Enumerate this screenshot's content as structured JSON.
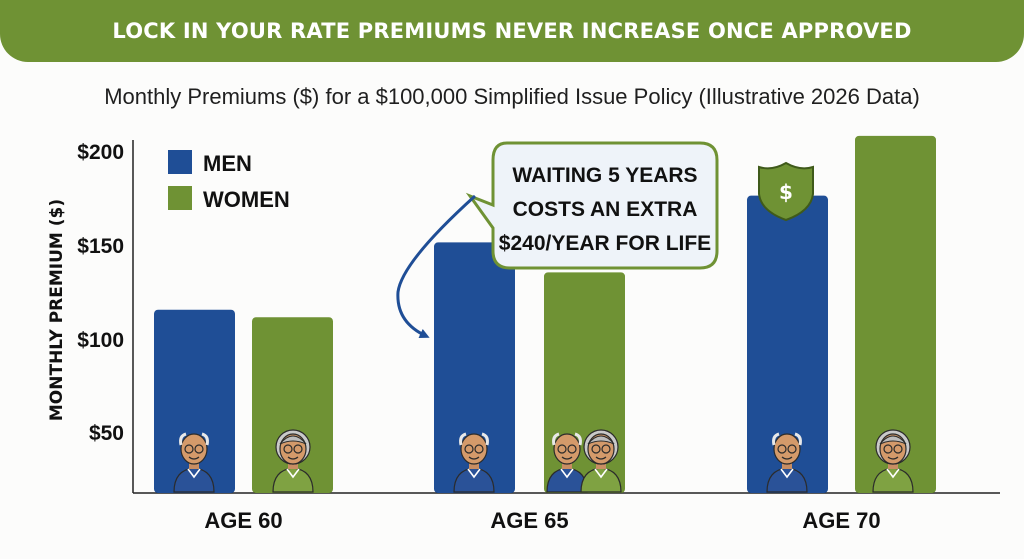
{
  "banner": {
    "text": "LOCK IN YOUR RATE PREMIUMS NEVER INCREASE ONCE APPROVED"
  },
  "colors": {
    "banner": "#6f9234",
    "men": "#1f4e96",
    "women": "#6f9234",
    "callout_border": "#6f9234",
    "callout_arrow": "#1f4e96"
  },
  "callout": {
    "lines": [
      "WAITING 5 YEARS",
      "COSTS AN EXTRA",
      "$240/YEAR FOR LIFE"
    ]
  },
  "icons": [
    "shield-dollar-icon",
    "older-man-avatar",
    "older-woman-avatar",
    "older-couple-avatar"
  ],
  "chart_data": {
    "type": "bar",
    "title": "Monthly Premiums ($) for a $100,000 Simplified Issue Policy (Illustrative 2026 Data)",
    "xlabel": "",
    "ylabel": "MONTHLY PREMIUM ($)",
    "categories": [
      "AGE 60",
      "AGE 65",
      "AGE 70"
    ],
    "series": [
      {
        "name": "MEN",
        "values": [
          98,
          134,
          159
        ]
      },
      {
        "name": "WOMEN",
        "values": [
          94,
          118,
          191
        ]
      }
    ],
    "yticks": [
      "$50",
      "$100",
      "$150",
      "$200"
    ],
    "ytick_values": [
      50,
      100,
      150,
      200
    ],
    "ylim": [
      0,
      200
    ],
    "legend_position": "top-left",
    "grid": false
  }
}
